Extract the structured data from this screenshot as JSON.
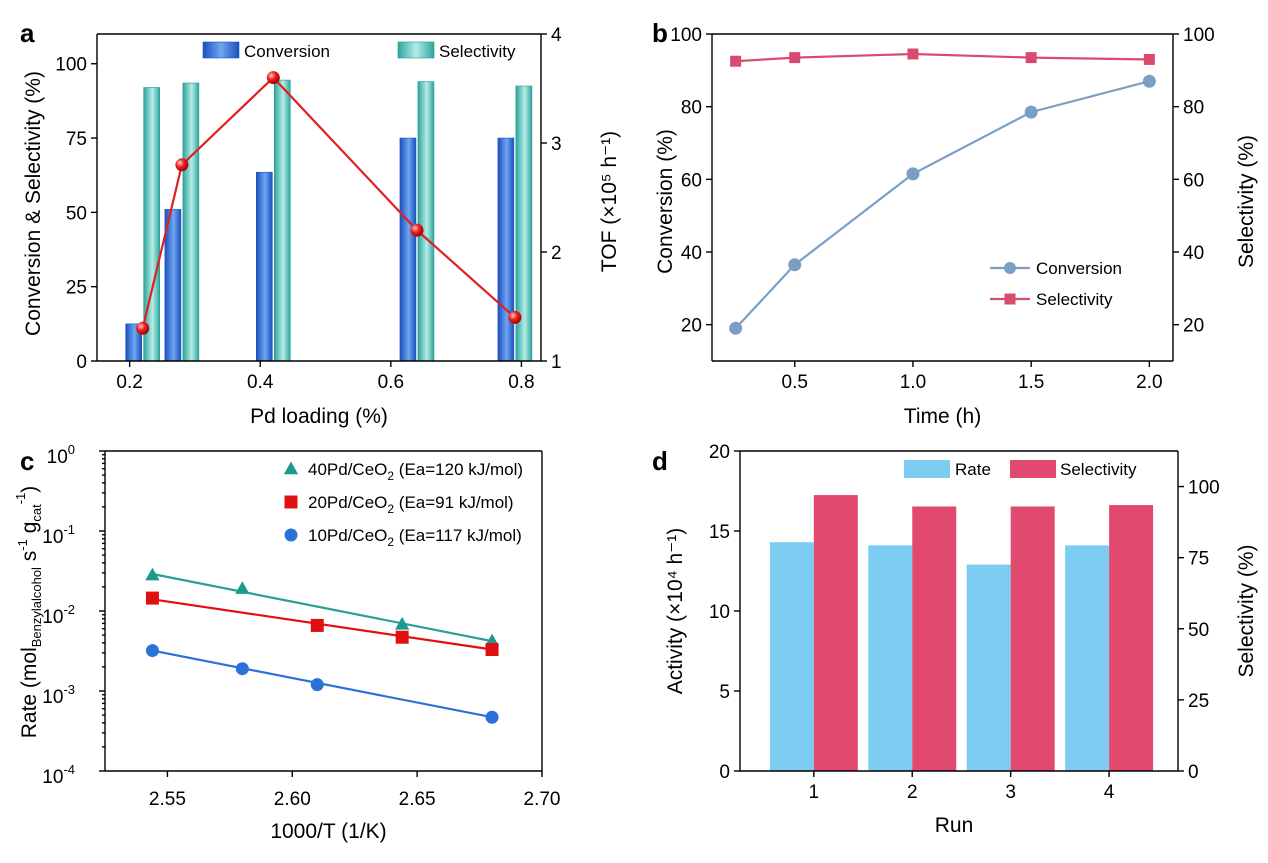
{
  "chart_data": [
    {
      "panel": "a",
      "type": "bar",
      "xlabel": "Pd loading (%)",
      "ylabel": "Conversion & Selectivity (%)",
      "y2label": "TOF (×10⁵ h⁻¹)",
      "xlim": [
        0.15,
        0.83
      ],
      "ylim": [
        0,
        110
      ],
      "y2lim": [
        1,
        4
      ],
      "xticks": [
        "0.2",
        "0.4",
        "0.6",
        "0.8"
      ],
      "yticks": [
        "0",
        "25",
        "50",
        "75",
        "100"
      ],
      "y2ticks": [
        "1",
        "2",
        "3",
        "4"
      ],
      "legend_position": "top",
      "x": [
        0.22,
        0.28,
        0.42,
        0.64,
        0.79
      ],
      "series": [
        {
          "name": "Conversion",
          "type": "bar",
          "axis": "left",
          "color": "#2f6fd8",
          "values": [
            12.5,
            51,
            63.5,
            75,
            75
          ]
        },
        {
          "name": "Selectivity",
          "type": "bar",
          "axis": "left",
          "color": "#3bb8b0",
          "values": [
            92,
            93.5,
            94.5,
            94,
            92.5
          ]
        },
        {
          "name": "",
          "type": "line",
          "axis": "right",
          "color": "#e02020",
          "values": [
            1.3,
            2.8,
            3.6,
            2.2,
            1.4
          ]
        }
      ]
    },
    {
      "panel": "b",
      "type": "line",
      "xlabel": "Time (h)",
      "ylabel": "Conversion (%)",
      "y2label": "Selectivity (%)",
      "xlim": [
        0.15,
        2.1
      ],
      "ylim": [
        10,
        100
      ],
      "y2lim": [
        10,
        100
      ],
      "xticks": [
        "0.5",
        "1.0",
        "1.5",
        "2.0"
      ],
      "yticks": [
        "20",
        "40",
        "60",
        "80",
        "100"
      ],
      "y2ticks": [
        "20",
        "40",
        "60",
        "80",
        "100"
      ],
      "legend_position": "center-right",
      "x": [
        0.25,
        0.5,
        1.0,
        1.5,
        2.0
      ],
      "series": [
        {
          "name": "Conversion",
          "axis": "left",
          "color": "#7b9fc4",
          "marker": "circle",
          "values": [
            19,
            36.5,
            61.5,
            78.5,
            87
          ]
        },
        {
          "name": "Selectivity",
          "axis": "right",
          "color": "#d94b6e",
          "marker": "square",
          "values": [
            92.5,
            93.5,
            94.5,
            93.5,
            93
          ]
        }
      ]
    },
    {
      "panel": "c",
      "type": "scatter",
      "xlabel": "1000/T (1/K)",
      "ylabel_main": "Rate (mol",
      "ylabel_sub": "Benzylalcohol",
      "ylabel_rest": " s",
      "ylabel_sup1": "-1",
      "ylabel_g": " g",
      "ylabel_gsub": "cat",
      "ylabel_sup2": "-1",
      "ylabel_close": ")",
      "xlim": [
        2.525,
        2.7
      ],
      "ylim": [
        0.0001,
        1
      ],
      "yscale": "log",
      "xticks": [
        "2.55",
        "2.60",
        "2.65",
        "2.70"
      ],
      "yticks_base": "10",
      "yticks_exp": [
        "0",
        "-1",
        "-2",
        "-3",
        "-4"
      ],
      "legend_position": "top-right",
      "x": [
        2.544,
        2.58,
        2.61,
        2.644,
        2.68
      ],
      "series": [
        {
          "name_pre": "40Pd/CeO",
          "name_sub": "2",
          "name_post": " (Ea=120 kJ/mol)",
          "color": "#1a9c8c",
          "line_color": "#2aa094",
          "marker": "triangle",
          "values": [
            0.028,
            0.019,
            null,
            0.0068,
            0.0042
          ],
          "fit": [
            0.029,
            0.0042
          ]
        },
        {
          "name_pre": "20Pd/CeO",
          "name_sub": "2",
          "name_post": " (Ea=91 kJ/mol)",
          "color": "#e01010",
          "line_color": "#e01010",
          "marker": "square",
          "values": [
            0.0145,
            null,
            0.0066,
            0.0047,
            0.0033
          ],
          "fit": [
            0.014,
            0.0033
          ]
        },
        {
          "name_pre": "10Pd/CeO",
          "name_sub": "2",
          "name_post": " (Ea=117 kJ/mol)",
          "color": "#2a72d8",
          "line_color": "#2a72d8",
          "marker": "circle",
          "values": [
            0.0032,
            0.0019,
            0.0012,
            null,
            0.00047
          ],
          "fit": [
            0.0032,
            0.00047
          ]
        }
      ]
    },
    {
      "panel": "d",
      "type": "bar",
      "xlabel": "Run",
      "ylabel": "Activity (×10⁴ h⁻¹)",
      "y2label": "Selectivity (%)",
      "categories": [
        "1",
        "2",
        "3",
        "4"
      ],
      "ylim": [
        0,
        20
      ],
      "y2lim": [
        0,
        112.5
      ],
      "yticks": [
        "0",
        "5",
        "10",
        "15",
        "20"
      ],
      "y2ticks": [
        "0",
        "25",
        "50",
        "75",
        "100"
      ],
      "legend_position": "top",
      "series": [
        {
          "name": "Rate",
          "axis": "left",
          "color": "#7dcdf3",
          "values": [
            14.3,
            14.1,
            12.9,
            14.1
          ]
        },
        {
          "name": "Selectivity",
          "axis": "right",
          "color": "#e2496f",
          "values": [
            97,
            93,
            93,
            93.5
          ]
        }
      ]
    }
  ]
}
